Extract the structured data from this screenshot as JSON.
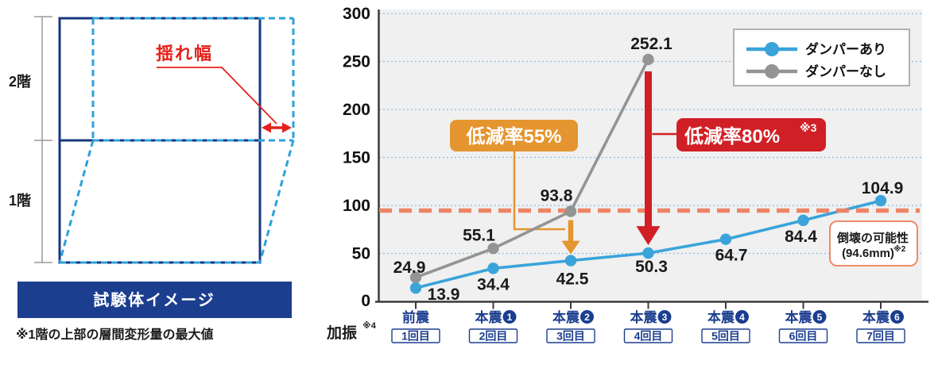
{
  "left_panel": {
    "floor2_label": "2階",
    "floor1_label": "1階",
    "sway_label": "揺れ幅",
    "caption": "試験体イメージ",
    "footnote": "※1階の上部の層間変形量の最大値"
  },
  "colors": {
    "navy": "#1c3e8f",
    "diagram_navy": "#19377e",
    "deformed_blue": "#2ca2dc",
    "diagram_red": "#e6211a",
    "series_with_damper": "#3aa4da",
    "series_without_damper": "#949494",
    "gridline_blue": "#7fb9e4",
    "threshold_salmon": "#ee8465",
    "callout_orange": "#e5952f",
    "callout_red": "#d11f26",
    "plot_background": "#f0f0f0"
  },
  "chart_data": {
    "type": "line",
    "categories": [
      {
        "name": "前震",
        "num": null,
        "trial": "1回目"
      },
      {
        "name": "本震",
        "num": "1",
        "trial": "2回目"
      },
      {
        "name": "本震",
        "num": "2",
        "trial": "3回目"
      },
      {
        "name": "本震",
        "num": "3",
        "trial": "4回目"
      },
      {
        "name": "本震",
        "num": "4",
        "trial": "5回目"
      },
      {
        "name": "本震",
        "num": "5",
        "trial": "6回目"
      },
      {
        "name": "本震",
        "num": "6",
        "trial": "7回目"
      }
    ],
    "x_axis_label": "加振",
    "x_axis_label_sup": "※4",
    "ylim": [
      0,
      300
    ],
    "yticks": [
      0,
      50,
      100,
      150,
      200,
      250,
      300
    ],
    "grid": "horizontal-dotted",
    "legend_position": "top-right",
    "series": [
      {
        "name": "ダンパーあり",
        "color": "#3aa4da",
        "values": [
          13.9,
          34.4,
          42.5,
          50.3,
          64.7,
          84.4,
          104.9
        ]
      },
      {
        "name": "ダンパーなし",
        "color": "#949494",
        "values": [
          24.9,
          55.1,
          93.8,
          252.1
        ]
      }
    ],
    "threshold": {
      "value": 94.6,
      "label_line1": "倒壊の可能性",
      "label_line2": "(94.6mm)",
      "label_sup": "※2"
    },
    "annotations": [
      {
        "text": "低減率55%",
        "sup": null,
        "at_category": 2
      },
      {
        "text": "低減率80%",
        "sup": "※3",
        "at_category": 3
      }
    ]
  }
}
